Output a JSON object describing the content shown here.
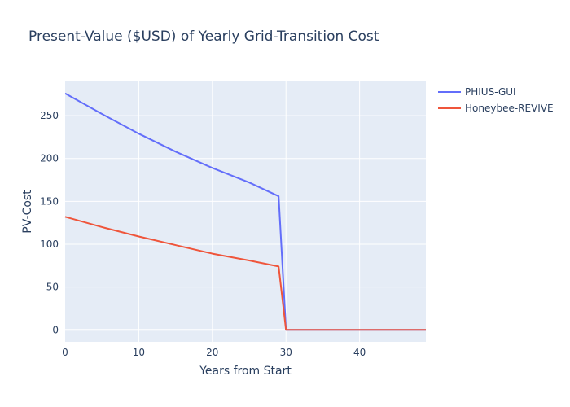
{
  "chart_data": {
    "type": "line",
    "title": "Present-Value ($USD) of Yearly Grid-Transition Cost",
    "xlabel": "Years from Start",
    "ylabel": "PV-Cost",
    "xlim": [
      0,
      49
    ],
    "ylim": [
      -14,
      290
    ],
    "xticks": [
      0,
      10,
      20,
      30,
      40
    ],
    "yticks": [
      0,
      50,
      100,
      150,
      200,
      250
    ],
    "grid": true,
    "legend_position": "right",
    "series": [
      {
        "name": "PHIUS-GUI",
        "color": "#636efa",
        "x": [
          0,
          5,
          10,
          15,
          20,
          25,
          29,
          30,
          35,
          40,
          45,
          49
        ],
        "y": [
          276,
          252,
          229,
          208,
          189,
          172,
          156,
          0,
          0,
          0,
          0,
          0
        ]
      },
      {
        "name": "Honeybee-REVIVE",
        "color": "#ef553b",
        "x": [
          0,
          5,
          10,
          15,
          20,
          25,
          29,
          30,
          35,
          40,
          45,
          49
        ],
        "y": [
          132,
          120,
          109,
          99,
          89,
          81,
          74,
          0,
          0,
          0,
          0,
          0
        ]
      }
    ]
  }
}
